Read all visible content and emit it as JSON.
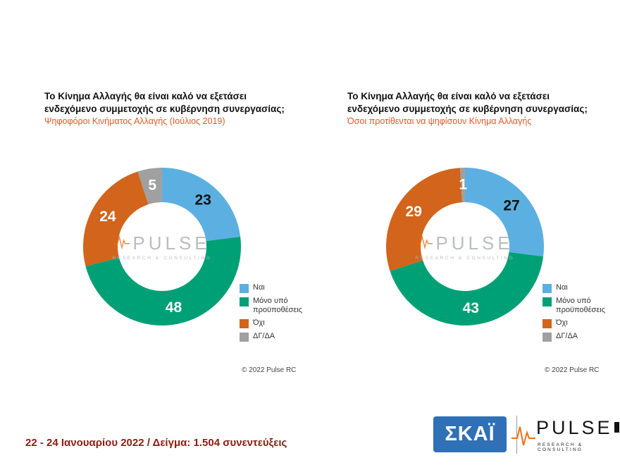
{
  "page": {
    "background": "#ffffff"
  },
  "footer": {
    "note": "22 - 24 Ιανουαρίου 2022  /  Δείγμα:  1.504 συνεντεύξεις",
    "note_color": "#8e1c12"
  },
  "logos": {
    "skai": {
      "text": "ΣΚΑΪ",
      "bg_color": "#2f70b7"
    },
    "pulse": {
      "text": "PULSE",
      "sub": "RESEARCH & CONSULTING",
      "wave_color": "#e8721c"
    }
  },
  "watermark": {
    "text": "PULSE",
    "sub": "RESEARCH & CONSULTING"
  },
  "chart_data": [
    {
      "type": "pie",
      "variant": "donut",
      "title": "Το Κίνημα Αλλαγής θα είναι καλό να εξετάσει ενδεχόμενο συμμετοχής σε κυβέρνηση συνεργασίας;",
      "subtitle": "Ψηφοφόροι Κινήματος Αλλαγής (Ιούλιος 2019)",
      "categories": [
        "Ναι",
        "Μόνο υπό προϋποθέσεις",
        "Όχι",
        "ΔΓ/ΔΑ"
      ],
      "values": [
        23,
        48,
        24,
        5
      ],
      "colors": [
        "#5bb0e1",
        "#00a076",
        "#d2641c",
        "#a0a0a0"
      ],
      "label_colors": [
        "#111111",
        "#ffffff",
        "#ffffff",
        "#ffffff"
      ],
      "legend_position": "right",
      "start_angle_deg": 0,
      "direction": "clockwise",
      "copyright": "© 2022 Pulse RC"
    },
    {
      "type": "pie",
      "variant": "donut",
      "title": "Το Κίνημα Αλλαγής θα είναι καλό να εξετάσει ενδεχόμενο συμμετοχής σε κυβέρνηση συνεργασίας;",
      "subtitle": "Όσοι προτίθενται να ψηφίσουν Κίνημα Αλλαγής",
      "categories": [
        "Ναι",
        "Μόνο υπό προϋποθέσεις",
        "Όχι",
        "ΔΓ/ΔΑ"
      ],
      "values": [
        27,
        43,
        29,
        1
      ],
      "colors": [
        "#5bb0e1",
        "#00a076",
        "#d2641c",
        "#a0a0a0"
      ],
      "label_colors": [
        "#111111",
        "#ffffff",
        "#ffffff",
        "#ffffff"
      ],
      "legend_position": "right",
      "start_angle_deg": 0,
      "direction": "clockwise",
      "copyright": "© 2022 Pulse RC"
    }
  ]
}
